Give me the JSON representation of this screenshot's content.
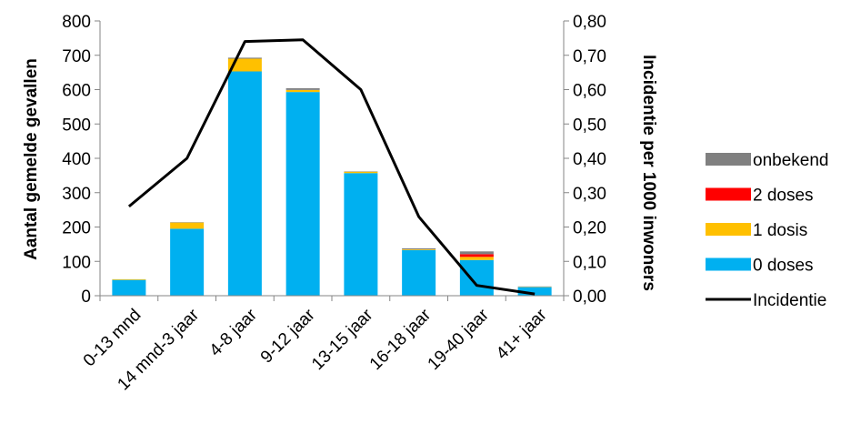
{
  "chart_data": {
    "type": "bar",
    "stacked": true,
    "categories": [
      "0-13 mnd",
      "14 mnd-3 jaar",
      "4-8 jaar",
      "9-12 jaar",
      "13-15 jaar",
      "16-18 jaar",
      "19-40 jaar",
      "41+ jaar"
    ],
    "series": [
      {
        "name": "0 doses",
        "color": "#00B0F0",
        "values": [
          46,
          195,
          653,
          593,
          357,
          133,
          104,
          25
        ]
      },
      {
        "name": "1 dosis",
        "color": "#FFC000",
        "values": [
          2,
          18,
          37,
          6,
          4,
          2,
          9,
          1
        ]
      },
      {
        "name": "2 doses",
        "color": "#FF0000",
        "values": [
          0,
          0,
          0,
          0,
          0,
          0,
          8,
          0
        ]
      },
      {
        "name": "onbekend",
        "color": "#808080",
        "values": [
          0,
          1,
          3,
          5,
          1,
          3,
          8,
          1
        ]
      }
    ],
    "line_series": {
      "name": "Incidentie",
      "color": "#000000",
      "axis": "right",
      "values": [
        0.26,
        0.4,
        0.74,
        0.745,
        0.6,
        0.23,
        0.03,
        0.005
      ]
    },
    "ylabel": "Aantal gemelde gevallen",
    "y2label": "Incidentie per 1000 inwoners",
    "ylim": [
      0,
      800
    ],
    "y2lim": [
      0,
      0.8
    ],
    "yticks": [
      "0",
      "100",
      "200",
      "300",
      "400",
      "500",
      "600",
      "700",
      "800"
    ],
    "y2ticks": [
      "0,00",
      "0,10",
      "0,20",
      "0,30",
      "0,40",
      "0,50",
      "0,60",
      "0,70",
      "0,80"
    ],
    "legend": [
      "onbekend",
      "2 doses",
      "1 dosis",
      "0 doses",
      "Incidentie"
    ],
    "legend_position": "right",
    "grid": false
  }
}
